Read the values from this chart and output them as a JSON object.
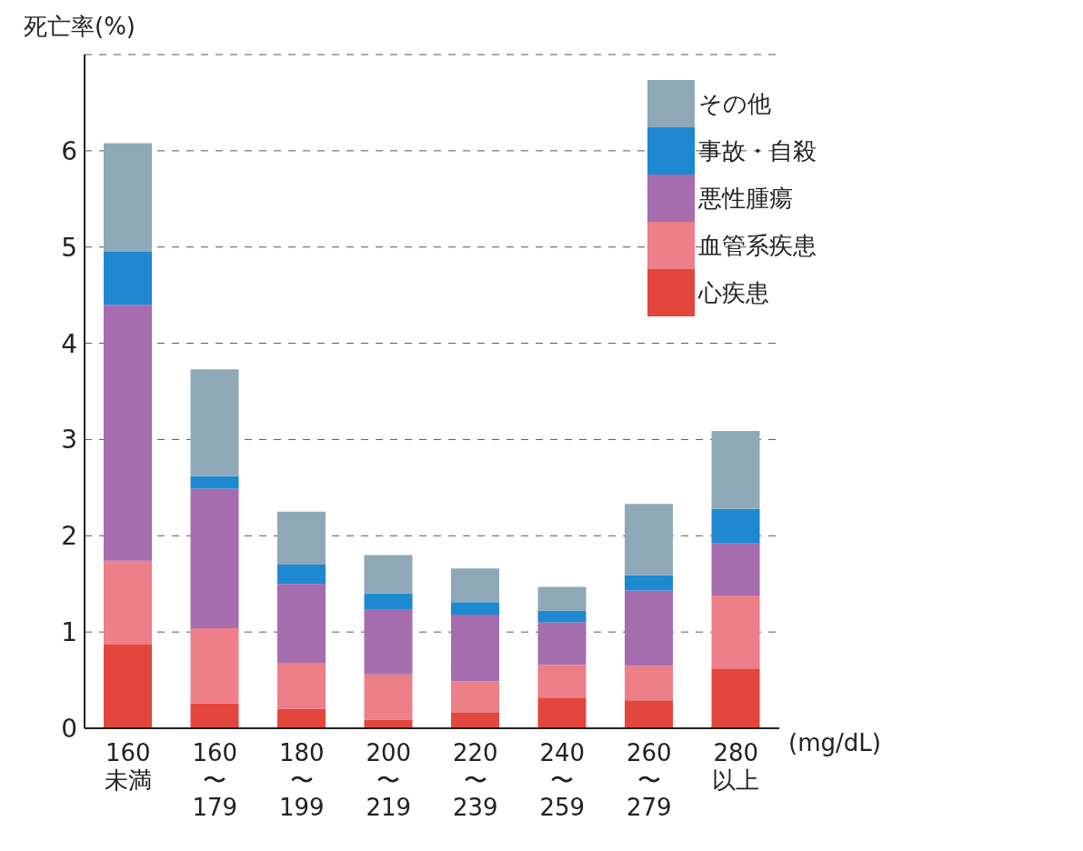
{
  "chart_data": {
    "type": "bar",
    "stacked": true,
    "ylabel": "死亡率(%)",
    "xlabel": "(mg/dL)",
    "categories": [
      "160\n未満",
      "160\n〜\n179",
      "180\n〜\n199",
      "200\n〜\n219",
      "220\n〜\n239",
      "240\n〜\n259",
      "260\n〜\n279",
      "280\n以上"
    ],
    "series": [
      {
        "name": "心疾患",
        "color": "#e2463d",
        "values": [
          0.87,
          0.26,
          0.2,
          0.09,
          0.16,
          0.32,
          0.29,
          0.62
        ]
      },
      {
        "name": "血管系疾患",
        "color": "#ec7f88",
        "values": [
          0.87,
          0.78,
          0.48,
          0.47,
          0.33,
          0.34,
          0.36,
          0.76
        ]
      },
      {
        "name": "悪性腫瘍",
        "color": "#a56cae",
        "values": [
          2.66,
          1.45,
          0.82,
          0.67,
          0.69,
          0.44,
          0.78,
          0.54
        ]
      },
      {
        "name": "事故・自殺",
        "color": "#1e88d0",
        "values": [
          0.55,
          0.13,
          0.2,
          0.17,
          0.13,
          0.12,
          0.16,
          0.36
        ]
      },
      {
        "name": "その他",
        "color": "#8fa8b8",
        "values": [
          1.13,
          1.11,
          0.55,
          0.4,
          0.35,
          0.25,
          0.74,
          0.81
        ]
      }
    ],
    "ylim": [
      0,
      7
    ],
    "yticks": [
      0,
      1,
      2,
      3,
      4,
      5,
      6,
      {
        "value": 7,
        "label": null
      }
    ],
    "grid": "y",
    "legend": "top right"
  }
}
